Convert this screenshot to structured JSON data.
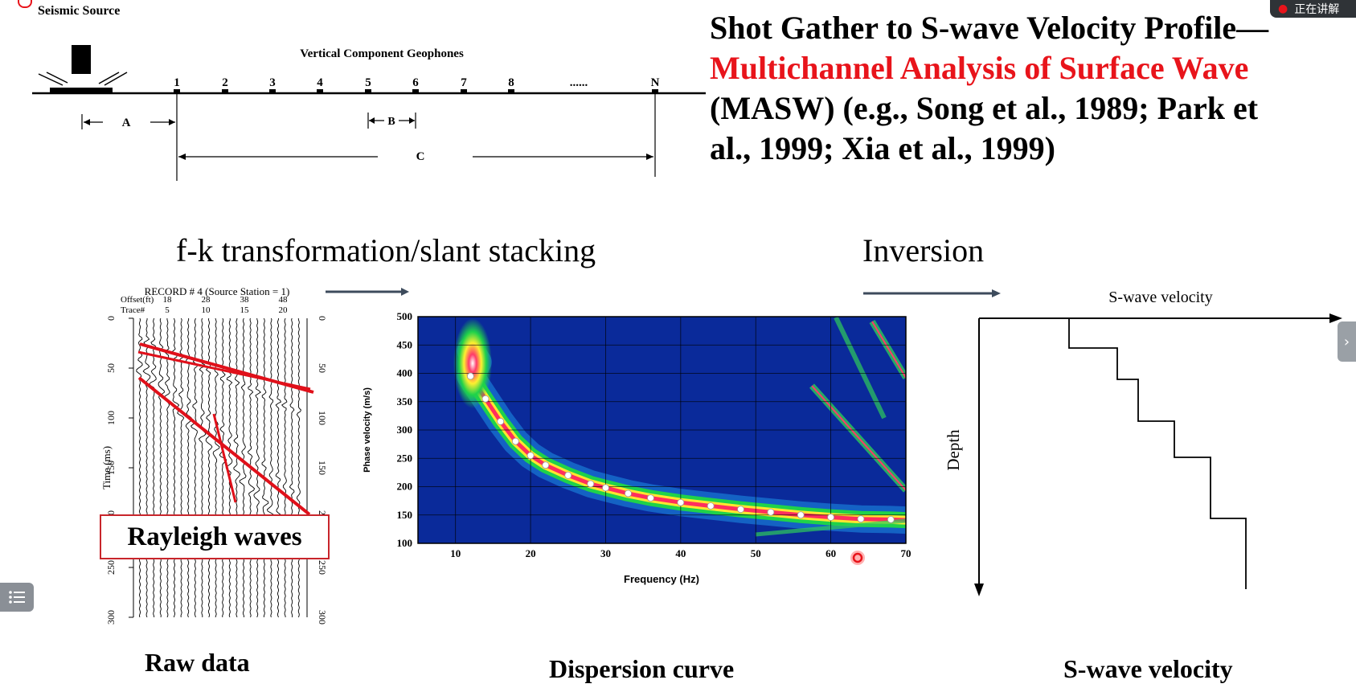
{
  "title": {
    "line1": "Shot Gather to S-wave Velocity Profile—",
    "line2": "Multichannel Analysis of Surface Wave",
    "line3": "(MASW) (e.g., Song et al., 1989; Park et",
    "line4": "al., 1999;  Xia et al., 1999)"
  },
  "schematic": {
    "source_label": "Seismic  Source",
    "geophones_label": "Vertical Component Geophones",
    "stations": [
      "1",
      "2",
      "3",
      "4",
      "5",
      "6",
      "7",
      "8",
      "......",
      "N"
    ],
    "dim_a": "A",
    "dim_b": "B",
    "dim_c": "C"
  },
  "stages": {
    "fk": "f-k transformation/slant stacking",
    "inversion": "Inversion"
  },
  "raw_data": {
    "record_title": "RECORD # 4 (Source Station = 1)",
    "offset_label": "Offset(ft)",
    "offset_ticks": [
      "18",
      "28",
      "38",
      "48"
    ],
    "trace_label": "Trace#",
    "trace_ticks": [
      "5",
      "10",
      "15",
      "20"
    ],
    "time_ticks": [
      "0",
      "50",
      "100",
      "150",
      "200",
      "250",
      "300"
    ],
    "ylabel": "Time (ms)",
    "annotation": "Rayleigh waves",
    "caption": "Raw data"
  },
  "chart_data": {
    "type": "heatmap",
    "title": "",
    "xlabel": "Frequency (Hz)",
    "ylabel": "Phase velocity (m/s)",
    "xlim": [
      5,
      70
    ],
    "ylim": [
      100,
      500
    ],
    "x_ticks": [
      10,
      20,
      30,
      40,
      50,
      60,
      70
    ],
    "y_ticks": [
      100,
      150,
      200,
      250,
      300,
      350,
      400,
      450,
      500
    ],
    "grid": true,
    "dispersion_points": {
      "x": [
        12,
        14,
        16,
        18,
        20,
        22,
        25,
        28,
        30,
        33,
        36,
        40,
        44,
        48,
        52,
        56,
        60,
        64,
        68
      ],
      "y": [
        395,
        355,
        315,
        280,
        255,
        238,
        220,
        205,
        198,
        188,
        180,
        172,
        166,
        160,
        155,
        150,
        146,
        143,
        142
      ]
    },
    "caption": "Dispersion curve"
  },
  "profile": {
    "xlabel": "S-wave velocity",
    "ylabel": "Depth",
    "caption": "S-wave velocity"
  },
  "ui": {
    "top_button_label": "正在讲解",
    "colors": {
      "accent_red": "#e8141b",
      "heat_bg": "#0a2a9a"
    }
  }
}
